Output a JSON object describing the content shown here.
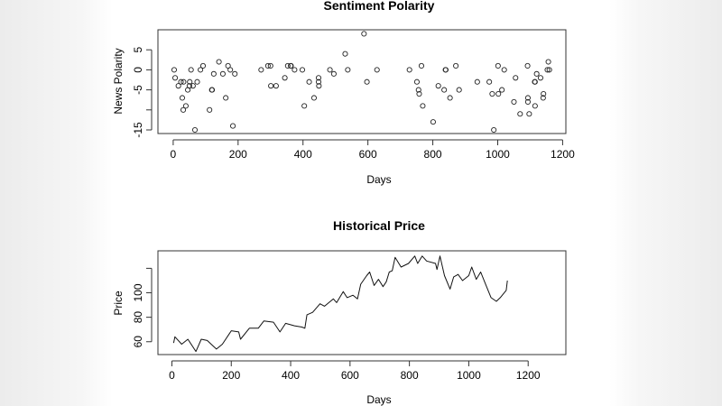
{
  "chart_data": [
    {
      "type": "scatter",
      "title": "Sentiment Polarity",
      "xlabel": "Days",
      "ylabel": "News Polarity",
      "xlim": [
        -47,
        1210
      ],
      "ylim": [
        -15.9,
        10
      ],
      "xticks": [
        0,
        200,
        400,
        600,
        800,
        1000,
        1200
      ],
      "yticks": [
        -15,
        -10,
        -5,
        0,
        5
      ],
      "ytick_labels": [
        "-15",
        "",
        "-5",
        "0",
        "5"
      ],
      "grid": false,
      "points": [
        [
          3,
          0
        ],
        [
          6,
          -2
        ],
        [
          16,
          -4
        ],
        [
          24,
          -3
        ],
        [
          28,
          -7
        ],
        [
          32,
          -3
        ],
        [
          31,
          -10
        ],
        [
          39,
          -9
        ],
        [
          45,
          -5
        ],
        [
          50,
          -4
        ],
        [
          51,
          -3
        ],
        [
          55,
          0
        ],
        [
          61,
          -4
        ],
        [
          67,
          -15
        ],
        [
          74,
          -3
        ],
        [
          84,
          0
        ],
        [
          92,
          1
        ],
        [
          112,
          -10
        ],
        [
          119,
          -5
        ],
        [
          120,
          -5
        ],
        [
          125,
          -1
        ],
        [
          141,
          2
        ],
        [
          153,
          -1
        ],
        [
          162,
          -7
        ],
        [
          169,
          1
        ],
        [
          176,
          0
        ],
        [
          184,
          -14
        ],
        [
          190,
          -1
        ],
        [
          271,
          0
        ],
        [
          292,
          1
        ],
        [
          300,
          1
        ],
        [
          301,
          -4
        ],
        [
          317,
          -4
        ],
        [
          344,
          -2
        ],
        [
          353,
          1
        ],
        [
          362,
          1
        ],
        [
          363,
          1
        ],
        [
          374,
          0
        ],
        [
          398,
          0
        ],
        [
          404,
          -9
        ],
        [
          419,
          -3
        ],
        [
          434,
          -7
        ],
        [
          448,
          -2
        ],
        [
          448,
          -3
        ],
        [
          449,
          -4
        ],
        [
          483,
          0
        ],
        [
          495,
          -1
        ],
        [
          530,
          4
        ],
        [
          538,
          0
        ],
        [
          588,
          9
        ],
        [
          597,
          -3
        ],
        [
          628,
          0
        ],
        [
          728,
          0
        ],
        [
          751,
          -3
        ],
        [
          756,
          -5
        ],
        [
          758,
          -6
        ],
        [
          765,
          1
        ],
        [
          769,
          -9
        ],
        [
          801,
          -13
        ],
        [
          817,
          -4
        ],
        [
          835,
          -5
        ],
        [
          839,
          0
        ],
        [
          840,
          0
        ],
        [
          853,
          -7
        ],
        [
          871,
          1
        ],
        [
          881,
          -5
        ],
        [
          937,
          -3
        ],
        [
          974,
          -3
        ],
        [
          983,
          -6
        ],
        [
          988,
          -15
        ],
        [
          1001,
          1
        ],
        [
          1002,
          -6
        ],
        [
          1013,
          -5
        ],
        [
          1020,
          0
        ],
        [
          1050,
          -8
        ],
        [
          1055,
          -2
        ],
        [
          1069,
          -11
        ],
        [
          1092,
          1
        ],
        [
          1093,
          -7
        ],
        [
          1093,
          -8
        ],
        [
          1097,
          -11
        ],
        [
          1114,
          -3
        ],
        [
          1115,
          -3
        ],
        [
          1115,
          -9
        ],
        [
          1120,
          -1
        ],
        [
          1132,
          -2
        ],
        [
          1140,
          -7
        ],
        [
          1141,
          -6
        ],
        [
          1153,
          0
        ],
        [
          1156,
          2
        ],
        [
          1159,
          0
        ]
      ]
    },
    {
      "type": "line",
      "title": "Historical Price",
      "xlabel": "Days",
      "ylabel": "Price",
      "xlim": [
        -47,
        1327
      ],
      "ylim": [
        49.5,
        134.3
      ],
      "xticks": [
        0,
        200,
        400,
        600,
        800,
        1000,
        1200
      ],
      "yticks": [
        60,
        80,
        100,
        120
      ],
      "ytick_labels": [
        "60",
        "80",
        "100",
        ""
      ],
      "grid": false,
      "points": [
        [
          6,
          59
        ],
        [
          10,
          64
        ],
        [
          33,
          58
        ],
        [
          54,
          62
        ],
        [
          81,
          52
        ],
        [
          99,
          62
        ],
        [
          119,
          61
        ],
        [
          150,
          54
        ],
        [
          170,
          58
        ],
        [
          200,
          69
        ],
        [
          225,
          68
        ],
        [
          231,
          62
        ],
        [
          261,
          71
        ],
        [
          291,
          71
        ],
        [
          310,
          77
        ],
        [
          342,
          76
        ],
        [
          364,
          68
        ],
        [
          383,
          75
        ],
        [
          413,
          73
        ],
        [
          438,
          72
        ],
        [
          448,
          71
        ],
        [
          455,
          82
        ],
        [
          474,
          84
        ],
        [
          499,
          91
        ],
        [
          514,
          89
        ],
        [
          544,
          95
        ],
        [
          555,
          92
        ],
        [
          577,
          101
        ],
        [
          590,
          96
        ],
        [
          610,
          98
        ],
        [
          625,
          95
        ],
        [
          636,
          107
        ],
        [
          656,
          114
        ],
        [
          666,
          117
        ],
        [
          681,
          106
        ],
        [
          696,
          111
        ],
        [
          711,
          105
        ],
        [
          722,
          109
        ],
        [
          732,
          117
        ],
        [
          742,
          118
        ],
        [
          752,
          129
        ],
        [
          772,
          121
        ],
        [
          797,
          124
        ],
        [
          818,
          130
        ],
        [
          828,
          124
        ],
        [
          843,
          130
        ],
        [
          858,
          126
        ],
        [
          888,
          124
        ],
        [
          893,
          119
        ],
        [
          903,
          130
        ],
        [
          918,
          114
        ],
        [
          937,
          103
        ],
        [
          949,
          113
        ],
        [
          964,
          115
        ],
        [
          979,
          110
        ],
        [
          1000,
          114
        ],
        [
          1010,
          121
        ],
        [
          1025,
          111
        ],
        [
          1040,
          117
        ],
        [
          1055,
          108
        ],
        [
          1075,
          96
        ],
        [
          1093,
          93
        ],
        [
          1106,
          96
        ],
        [
          1126,
          102
        ],
        [
          1130,
          110
        ]
      ]
    }
  ]
}
